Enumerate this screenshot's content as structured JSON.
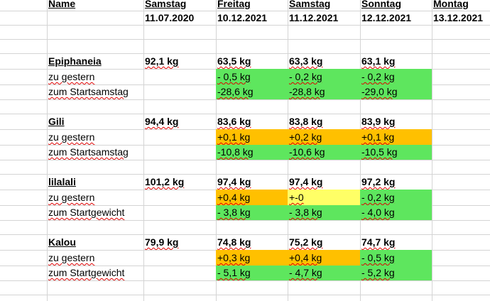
{
  "colors": {
    "gain": "#ffc000",
    "loss": "#5ee65e",
    "neutral": "#ffff66",
    "grid": "#d4d4d4"
  },
  "header": {
    "name_label": "Name",
    "days": [
      {
        "weekday": "Samstag",
        "date": "11.07.2020"
      },
      {
        "weekday": "Freitag",
        "date": "10.12.2021"
      },
      {
        "weekday": "Samstag",
        "date": "11.12.2021"
      },
      {
        "weekday": "Sonntag",
        "date": "12.12.2021"
      },
      {
        "weekday": "Montag",
        "date": "13.12.2021"
      }
    ]
  },
  "people": [
    {
      "name": "Epiphaneia",
      "weights": [
        "92,1 kg",
        "63,5 kg",
        "63,3 kg",
        "63,1 kg"
      ],
      "daily_label": "zu gestern",
      "daily": [
        {
          "text": "- 0,5 kg",
          "status": "green"
        },
        {
          "text": "- 0,2 kg",
          "status": "green"
        },
        {
          "text": "- 0,2 kg",
          "status": "green"
        }
      ],
      "total_label": "zum Startsamstag",
      "total": [
        {
          "text": "-28,6 kg",
          "status": "green"
        },
        {
          "text": "-28,8 kg",
          "status": "green"
        },
        {
          "text": "-29,0 kg",
          "status": "green"
        }
      ]
    },
    {
      "name": "Gili",
      "weights": [
        "94,4 kg",
        "83,6 kg",
        "83,8 kg",
        "83,9 kg"
      ],
      "daily_label": "zu gestern",
      "daily": [
        {
          "text": "+0,1 kg",
          "status": "orange"
        },
        {
          "text": "+0,2 kg",
          "status": "orange"
        },
        {
          "text": "+0,1 kg",
          "status": "orange"
        }
      ],
      "total_label": "zum Startsamstag",
      "total": [
        {
          "text": "-10,8 kg",
          "status": "green"
        },
        {
          "text": "-10,6 kg",
          "status": "green"
        },
        {
          "text": "-10,5 kg",
          "status": "green"
        }
      ]
    },
    {
      "name": "lilalali",
      "weights": [
        "101,2 kg",
        "97,4 kg",
        "97,4 kg",
        "97,2  kg"
      ],
      "daily_label": "zu gestern",
      "daily": [
        {
          "text": "+0,4 kg",
          "status": "orange"
        },
        {
          "text": "+-0",
          "status": "yellow"
        },
        {
          "text": "- 0,2 kg",
          "status": "green"
        }
      ],
      "total_label": "zum Startgewicht",
      "total": [
        {
          "text": "- 3,8 kg",
          "status": "green"
        },
        {
          "text": "- 3,8 kg",
          "status": "green"
        },
        {
          "text": "- 4,0 kg",
          "status": "green"
        }
      ]
    },
    {
      "name": "Kalou",
      "weights": [
        "79,9 kg",
        "74,8 kg",
        "75,2 kg",
        "74,7 kg"
      ],
      "daily_label": "zu gestern",
      "daily": [
        {
          "text": "+0,3 kg",
          "status": "orange"
        },
        {
          "text": "+0,4 kg",
          "status": "orange"
        },
        {
          "text": "- 0,5 kg",
          "status": "green"
        }
      ],
      "total_label": "zum Startgewicht",
      "total": [
        {
          "text": "- 5,1 kg",
          "status": "green"
        },
        {
          "text": "- 4,7 kg",
          "status": "green"
        },
        {
          "text": "- 5,2 kg",
          "status": "green"
        }
      ]
    }
  ]
}
